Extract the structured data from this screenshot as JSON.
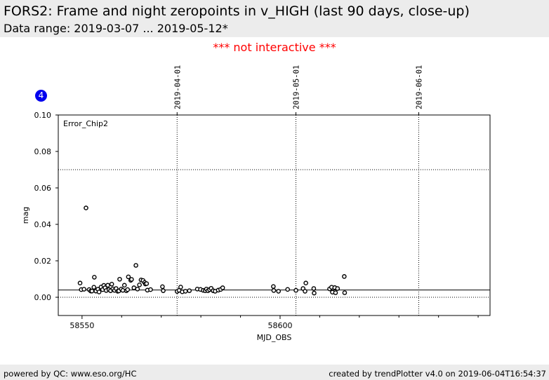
{
  "header": {
    "title": "FORS2: Frame and night zeropoints in v_HIGH (last 90 days, close-up)",
    "subtitle": "Data range: 2019-03-07 ... 2019-05-12*"
  },
  "notice": "*** not interactive ***",
  "panel_badge": "4",
  "footer": {
    "left": "powered by QC: www.eso.org/HC",
    "right": "created by trendPlotter v4.0 on 2019-06-04T16:54:37"
  },
  "colors": {
    "notice": "#ff0000",
    "badge": "#0000ee",
    "band": "#ececec"
  },
  "chart_data": {
    "type": "scatter",
    "panel_label": "Error_Chip2",
    "xlabel": "MJD_OBS",
    "ylabel": "mag",
    "xlim": [
      58544,
      58653
    ],
    "ylim": [
      -0.01,
      0.1
    ],
    "x_ticks": [
      58550,
      58600
    ],
    "x_minor_ticks": [
      58560,
      58570,
      58580,
      58590,
      58610,
      58620,
      58630,
      58640,
      58650
    ],
    "y_ticks": [
      0.0,
      0.02,
      0.04,
      0.06,
      0.08,
      0.1
    ],
    "y_tick_labels": [
      "0.00",
      "0.02",
      "0.04",
      "0.06",
      "0.08",
      "0.10"
    ],
    "date_markers": [
      {
        "label": "2019-04-01",
        "mjd": 58574
      },
      {
        "label": "2019-05-01",
        "mjd": 58604
      },
      {
        "label": "2019-06-01",
        "mjd": 58635
      }
    ],
    "hlines": [
      {
        "y": 0.004,
        "style": "solid"
      },
      {
        "y": 0.0,
        "style": "dotted"
      },
      {
        "y": 0.07,
        "style": "dotted"
      }
    ],
    "points": [
      [
        58549.5,
        0.0078
      ],
      [
        58549.8,
        0.0042
      ],
      [
        58550.5,
        0.0044
      ],
      [
        58551.0,
        0.049
      ],
      [
        58551.8,
        0.0042
      ],
      [
        58552.2,
        0.0034
      ],
      [
        58552.5,
        0.0034
      ],
      [
        58553.0,
        0.0055
      ],
      [
        58553.1,
        0.011
      ],
      [
        58553.5,
        0.0034
      ],
      [
        58554.0,
        0.0044
      ],
      [
        58554.3,
        0.0029
      ],
      [
        58554.8,
        0.0056
      ],
      [
        58555.2,
        0.0042
      ],
      [
        58555.5,
        0.0065
      ],
      [
        58555.8,
        0.0052
      ],
      [
        58556.1,
        0.0037
      ],
      [
        58556.5,
        0.0066
      ],
      [
        58556.8,
        0.0042
      ],
      [
        58557.2,
        0.0036
      ],
      [
        58557.5,
        0.0072
      ],
      [
        58557.8,
        0.0046
      ],
      [
        58558.2,
        0.0038
      ],
      [
        58558.6,
        0.0048
      ],
      [
        58559.0,
        0.0033
      ],
      [
        58559.3,
        0.0035
      ],
      [
        58559.5,
        0.0099
      ],
      [
        58559.9,
        0.0045
      ],
      [
        58560.3,
        0.0038
      ],
      [
        58560.7,
        0.0066
      ],
      [
        58561.2,
        0.0036
      ],
      [
        58561.5,
        0.0042
      ],
      [
        58561.7,
        0.0112
      ],
      [
        58562.3,
        0.0093
      ],
      [
        58562.5,
        0.0098
      ],
      [
        58563.1,
        0.0052
      ],
      [
        58563.6,
        0.0175
      ],
      [
        58564.0,
        0.0045
      ],
      [
        58564.5,
        0.0068
      ],
      [
        58564.9,
        0.0095
      ],
      [
        58565.4,
        0.0092
      ],
      [
        58565.8,
        0.0081
      ],
      [
        58566.0,
        0.0073
      ],
      [
        58566.3,
        0.0075
      ],
      [
        58566.5,
        0.0039
      ],
      [
        58567.3,
        0.0042
      ],
      [
        58570.3,
        0.0058
      ],
      [
        58570.5,
        0.0036
      ],
      [
        58574.0,
        0.0032
      ],
      [
        58574.5,
        0.0038
      ],
      [
        58574.9,
        0.0056
      ],
      [
        58575.3,
        0.003
      ],
      [
        58576.1,
        0.0033
      ],
      [
        58577.1,
        0.0036
      ],
      [
        58579.1,
        0.0045
      ],
      [
        58579.9,
        0.0043
      ],
      [
        58580.6,
        0.0038
      ],
      [
        58581.1,
        0.0036
      ],
      [
        58581.4,
        0.0045
      ],
      [
        58581.8,
        0.0036
      ],
      [
        58582.2,
        0.0042
      ],
      [
        58582.6,
        0.0049
      ],
      [
        58583.1,
        0.0036
      ],
      [
        58583.6,
        0.0033
      ],
      [
        58584.4,
        0.0039
      ],
      [
        58585.0,
        0.0043
      ],
      [
        58585.5,
        0.0052
      ],
      [
        58598.3,
        0.0059
      ],
      [
        58598.4,
        0.0037
      ],
      [
        58599.6,
        0.0033
      ],
      [
        58601.9,
        0.0043
      ],
      [
        58604.0,
        0.0038
      ],
      [
        58605.8,
        0.0048
      ],
      [
        58606.3,
        0.0033
      ],
      [
        58606.5,
        0.0078
      ],
      [
        58608.5,
        0.0048
      ],
      [
        58608.6,
        0.0023
      ],
      [
        58612.5,
        0.0046
      ],
      [
        58613.0,
        0.0055
      ],
      [
        58613.2,
        0.0028
      ],
      [
        58613.8,
        0.0053
      ],
      [
        58614.0,
        0.0025
      ],
      [
        58614.5,
        0.0048
      ],
      [
        58616.2,
        0.0114
      ],
      [
        58616.3,
        0.0025
      ]
    ]
  }
}
